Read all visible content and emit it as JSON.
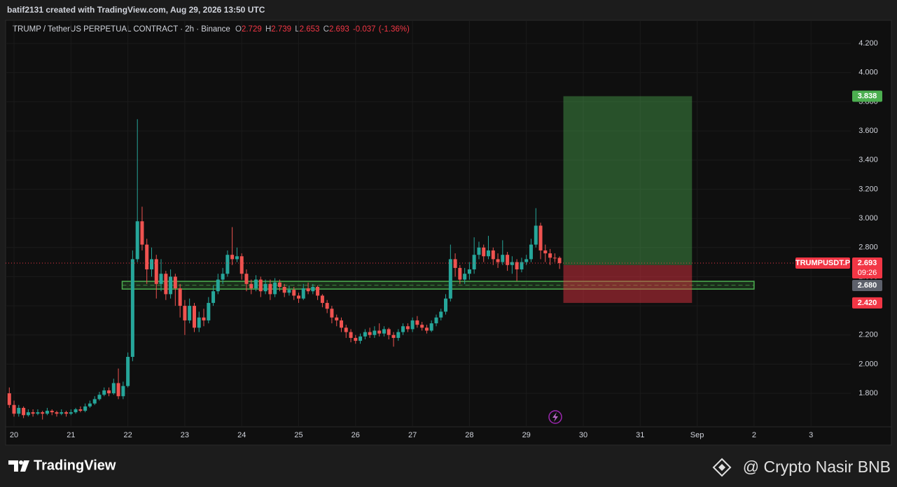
{
  "header": {
    "credit": "batif2131 created with TradingView.com, Aug 29, 2026 13:50 UTC"
  },
  "chart_data": {
    "type": "candlestick",
    "title": "TRUMP / TetherUS PERPETUAL CONTRACT · 2h · Binance",
    "symbol": "TRUMPUSDT.P",
    "legend_labels": [
      "O",
      "H",
      "L",
      "C"
    ],
    "change": -0.037,
    "change_pct": {
      "value": -1.36,
      "label": "(-1.36%)"
    },
    "countdown": "09:26",
    "up_color": "#26a69a",
    "down_color": "#ef5350",
    "x": [
      19.917,
      20,
      20.083,
      20.167,
      20.25,
      20.333,
      20.417,
      20.5,
      20.583,
      20.667,
      20.75,
      20.833,
      20.917,
      21,
      21.083,
      21.167,
      21.25,
      21.333,
      21.417,
      21.5,
      21.583,
      21.667,
      21.75,
      21.833,
      21.917,
      22,
      22.083,
      22.167,
      22.25,
      22.333,
      22.417,
      22.5,
      22.583,
      22.667,
      22.75,
      22.833,
      22.917,
      23,
      23.083,
      23.167,
      23.25,
      23.333,
      23.417,
      23.5,
      23.583,
      23.667,
      23.75,
      23.833,
      23.917,
      24,
      24.083,
      24.167,
      24.25,
      24.333,
      24.417,
      24.5,
      24.583,
      24.667,
      24.75,
      24.833,
      24.917,
      25,
      25.083,
      25.167,
      25.25,
      25.333,
      25.417,
      25.5,
      25.583,
      25.667,
      25.75,
      25.833,
      25.917,
      26,
      26.083,
      26.167,
      26.25,
      26.333,
      26.417,
      26.5,
      26.583,
      26.667,
      26.75,
      26.833,
      26.917,
      27,
      27.083,
      27.167,
      27.25,
      27.333,
      27.417,
      27.5,
      27.583,
      27.667,
      27.75,
      27.833,
      27.917,
      28,
      28.083,
      28.167,
      28.25,
      28.333,
      28.417,
      28.5,
      28.583,
      28.667,
      28.75,
      28.833,
      28.917,
      29,
      29.083,
      29.167,
      29.25,
      29.333,
      29.417,
      29.5,
      29.583
    ],
    "open": [
      1.8,
      1.72,
      1.66,
      1.7,
      1.65,
      1.67,
      1.66,
      1.67,
      1.66,
      1.68,
      1.67,
      1.66,
      1.67,
      1.66,
      1.67,
      1.69,
      1.68,
      1.71,
      1.73,
      1.76,
      1.79,
      1.82,
      1.8,
      1.87,
      1.78,
      1.85,
      2.05,
      2.72,
      2.98,
      2.82,
      2.65,
      2.72,
      2.55,
      2.62,
      2.48,
      2.6,
      2.52,
      2.4,
      2.3,
      2.4,
      2.25,
      2.32,
      2.3,
      2.42,
      2.5,
      2.58,
      2.62,
      2.75,
      2.72,
      2.74,
      2.62,
      2.55,
      2.52,
      2.58,
      2.5,
      2.55,
      2.48,
      2.56,
      2.53,
      2.49,
      2.51,
      2.47,
      2.45,
      2.52,
      2.5,
      2.53,
      2.47,
      2.42,
      2.38,
      2.32,
      2.3,
      2.25,
      2.22,
      2.18,
      2.16,
      2.19,
      2.22,
      2.2,
      2.23,
      2.21,
      2.24,
      2.2,
      2.18,
      2.22,
      2.26,
      2.24,
      2.3,
      2.27,
      2.25,
      2.23,
      2.28,
      2.32,
      2.36,
      2.45,
      2.72,
      2.66,
      2.58,
      2.62,
      2.65,
      2.75,
      2.8,
      2.74,
      2.78,
      2.72,
      2.7,
      2.75,
      2.68,
      2.7,
      2.65,
      2.7,
      2.72,
      2.82,
      2.95,
      2.78,
      2.76,
      2.73,
      2.729
    ],
    "high": [
      1.84,
      1.75,
      1.72,
      1.71,
      1.69,
      1.69,
      1.69,
      1.68,
      1.7,
      1.69,
      1.68,
      1.69,
      1.68,
      1.69,
      1.7,
      1.71,
      1.73,
      1.75,
      1.78,
      1.81,
      1.84,
      1.84,
      1.9,
      1.97,
      1.88,
      2.08,
      2.78,
      3.68,
      3.08,
      2.86,
      2.8,
      2.75,
      2.72,
      2.64,
      2.65,
      2.62,
      2.55,
      2.44,
      2.45,
      2.42,
      2.36,
      2.38,
      2.46,
      2.54,
      2.62,
      2.66,
      2.78,
      2.94,
      2.8,
      2.76,
      2.65,
      2.58,
      2.61,
      2.6,
      2.58,
      2.58,
      2.59,
      2.58,
      2.55,
      2.54,
      2.53,
      2.49,
      2.55,
      2.56,
      2.55,
      2.54,
      2.48,
      2.44,
      2.4,
      2.34,
      2.32,
      2.27,
      2.24,
      2.2,
      2.21,
      2.24,
      2.25,
      2.26,
      2.28,
      2.26,
      2.25,
      2.22,
      2.24,
      2.28,
      2.28,
      2.32,
      2.33,
      2.29,
      2.27,
      2.3,
      2.34,
      2.38,
      2.48,
      2.82,
      2.76,
      2.68,
      2.66,
      2.7,
      2.87,
      2.84,
      2.82,
      2.88,
      2.8,
      2.76,
      2.85,
      2.77,
      2.74,
      2.72,
      2.73,
      2.75,
      2.86,
      3.07,
      2.97,
      2.82,
      2.79,
      2.76,
      2.739
    ],
    "low": [
      1.7,
      1.64,
      1.64,
      1.63,
      1.64,
      1.64,
      1.65,
      1.62,
      1.65,
      1.65,
      1.64,
      1.65,
      1.64,
      1.65,
      1.66,
      1.67,
      1.67,
      1.7,
      1.72,
      1.75,
      1.78,
      1.78,
      1.79,
      1.76,
      1.76,
      1.84,
      2.02,
      2.7,
      2.78,
      2.55,
      2.6,
      2.45,
      2.5,
      2.44,
      2.45,
      2.4,
      2.32,
      2.2,
      2.28,
      2.22,
      2.22,
      2.26,
      2.28,
      2.4,
      2.48,
      2.55,
      2.6,
      2.68,
      2.7,
      2.58,
      2.5,
      2.48,
      2.5,
      2.46,
      2.48,
      2.44,
      2.46,
      2.5,
      2.46,
      2.47,
      2.44,
      2.42,
      2.44,
      2.48,
      2.48,
      2.44,
      2.39,
      2.35,
      2.28,
      2.26,
      2.22,
      2.18,
      2.15,
      2.14,
      2.14,
      2.17,
      2.18,
      2.18,
      2.19,
      2.19,
      2.17,
      2.12,
      2.16,
      2.2,
      2.22,
      2.22,
      2.25,
      2.23,
      2.21,
      2.22,
      2.26,
      2.3,
      2.34,
      2.43,
      2.6,
      2.55,
      2.55,
      2.58,
      2.62,
      2.72,
      2.7,
      2.72,
      2.68,
      2.66,
      2.68,
      2.64,
      2.62,
      2.57,
      2.63,
      2.68,
      2.7,
      2.8,
      2.72,
      2.7,
      2.68,
      2.7,
      2.653
    ],
    "close": [
      1.72,
      1.66,
      1.7,
      1.65,
      1.67,
      1.66,
      1.67,
      1.66,
      1.68,
      1.67,
      1.66,
      1.67,
      1.66,
      1.67,
      1.69,
      1.68,
      1.71,
      1.73,
      1.76,
      1.79,
      1.82,
      1.8,
      1.87,
      1.78,
      1.85,
      2.05,
      2.72,
      2.98,
      2.82,
      2.65,
      2.72,
      2.55,
      2.62,
      2.48,
      2.6,
      2.52,
      2.4,
      2.3,
      2.4,
      2.25,
      2.32,
      2.3,
      2.42,
      2.5,
      2.58,
      2.62,
      2.75,
      2.72,
      2.74,
      2.62,
      2.55,
      2.52,
      2.58,
      2.5,
      2.55,
      2.48,
      2.56,
      2.53,
      2.49,
      2.51,
      2.47,
      2.45,
      2.52,
      2.5,
      2.53,
      2.47,
      2.42,
      2.38,
      2.32,
      2.3,
      2.25,
      2.22,
      2.18,
      2.16,
      2.19,
      2.22,
      2.2,
      2.23,
      2.21,
      2.24,
      2.2,
      2.18,
      2.22,
      2.26,
      2.24,
      2.3,
      2.27,
      2.25,
      2.23,
      2.28,
      2.32,
      2.36,
      2.45,
      2.72,
      2.66,
      2.58,
      2.62,
      2.65,
      2.75,
      2.8,
      2.74,
      2.78,
      2.72,
      2.7,
      2.75,
      2.68,
      2.7,
      2.65,
      2.7,
      2.72,
      2.82,
      2.95,
      2.78,
      2.76,
      2.73,
      2.729,
      2.693
    ],
    "xlim": [
      19.852,
      34.699
    ],
    "xticks": [
      20,
      21,
      22,
      23,
      24,
      25,
      26,
      27,
      28,
      29,
      30,
      31,
      {
        "value": 32,
        "label": "Sep"
      },
      {
        "value": 33,
        "label": "2"
      },
      {
        "value": 34,
        "label": "3"
      }
    ],
    "ylim": [
      1.57,
      4.354
    ],
    "yticks": [
      {
        "value": 1.8,
        "label": "1.800"
      },
      {
        "value": 2.0,
        "label": "2.000"
      },
      {
        "value": 2.2,
        "label": "2.200"
      },
      {
        "value": 2.4,
        "label": "2.400"
      },
      {
        "value": 2.6,
        "label": "2.600"
      },
      {
        "value": 2.8,
        "label": "2.800"
      },
      {
        "value": 3.0,
        "label": "3.000"
      },
      {
        "value": 3.2,
        "label": "3.200"
      },
      {
        "value": 3.4,
        "label": "3.400"
      },
      {
        "value": 3.6,
        "label": "3.600"
      },
      {
        "value": 3.8,
        "label": "3.800"
      },
      {
        "value": 4.0,
        "label": "4.000"
      },
      {
        "value": 4.2,
        "label": "4.200"
      }
    ],
    "grid": true,
    "support_zone": {
      "xlim": [
        21.9,
        33.0
      ],
      "ylim": [
        2.515,
        2.568
      ],
      "color": "#4caf50"
    },
    "position": {
      "xlim": [
        29.65,
        31.91
      ],
      "entry": {
        "value": 2.68,
        "label": "2.680"
      },
      "target": 3.838,
      "stop": {
        "value": 2.42,
        "label": "2.420"
      },
      "profit_color": "#4caf50",
      "loss_color": "#f23645"
    }
  },
  "footer": {
    "brand": "TradingView",
    "watermark": "@ Crypto Nasir BNB"
  }
}
